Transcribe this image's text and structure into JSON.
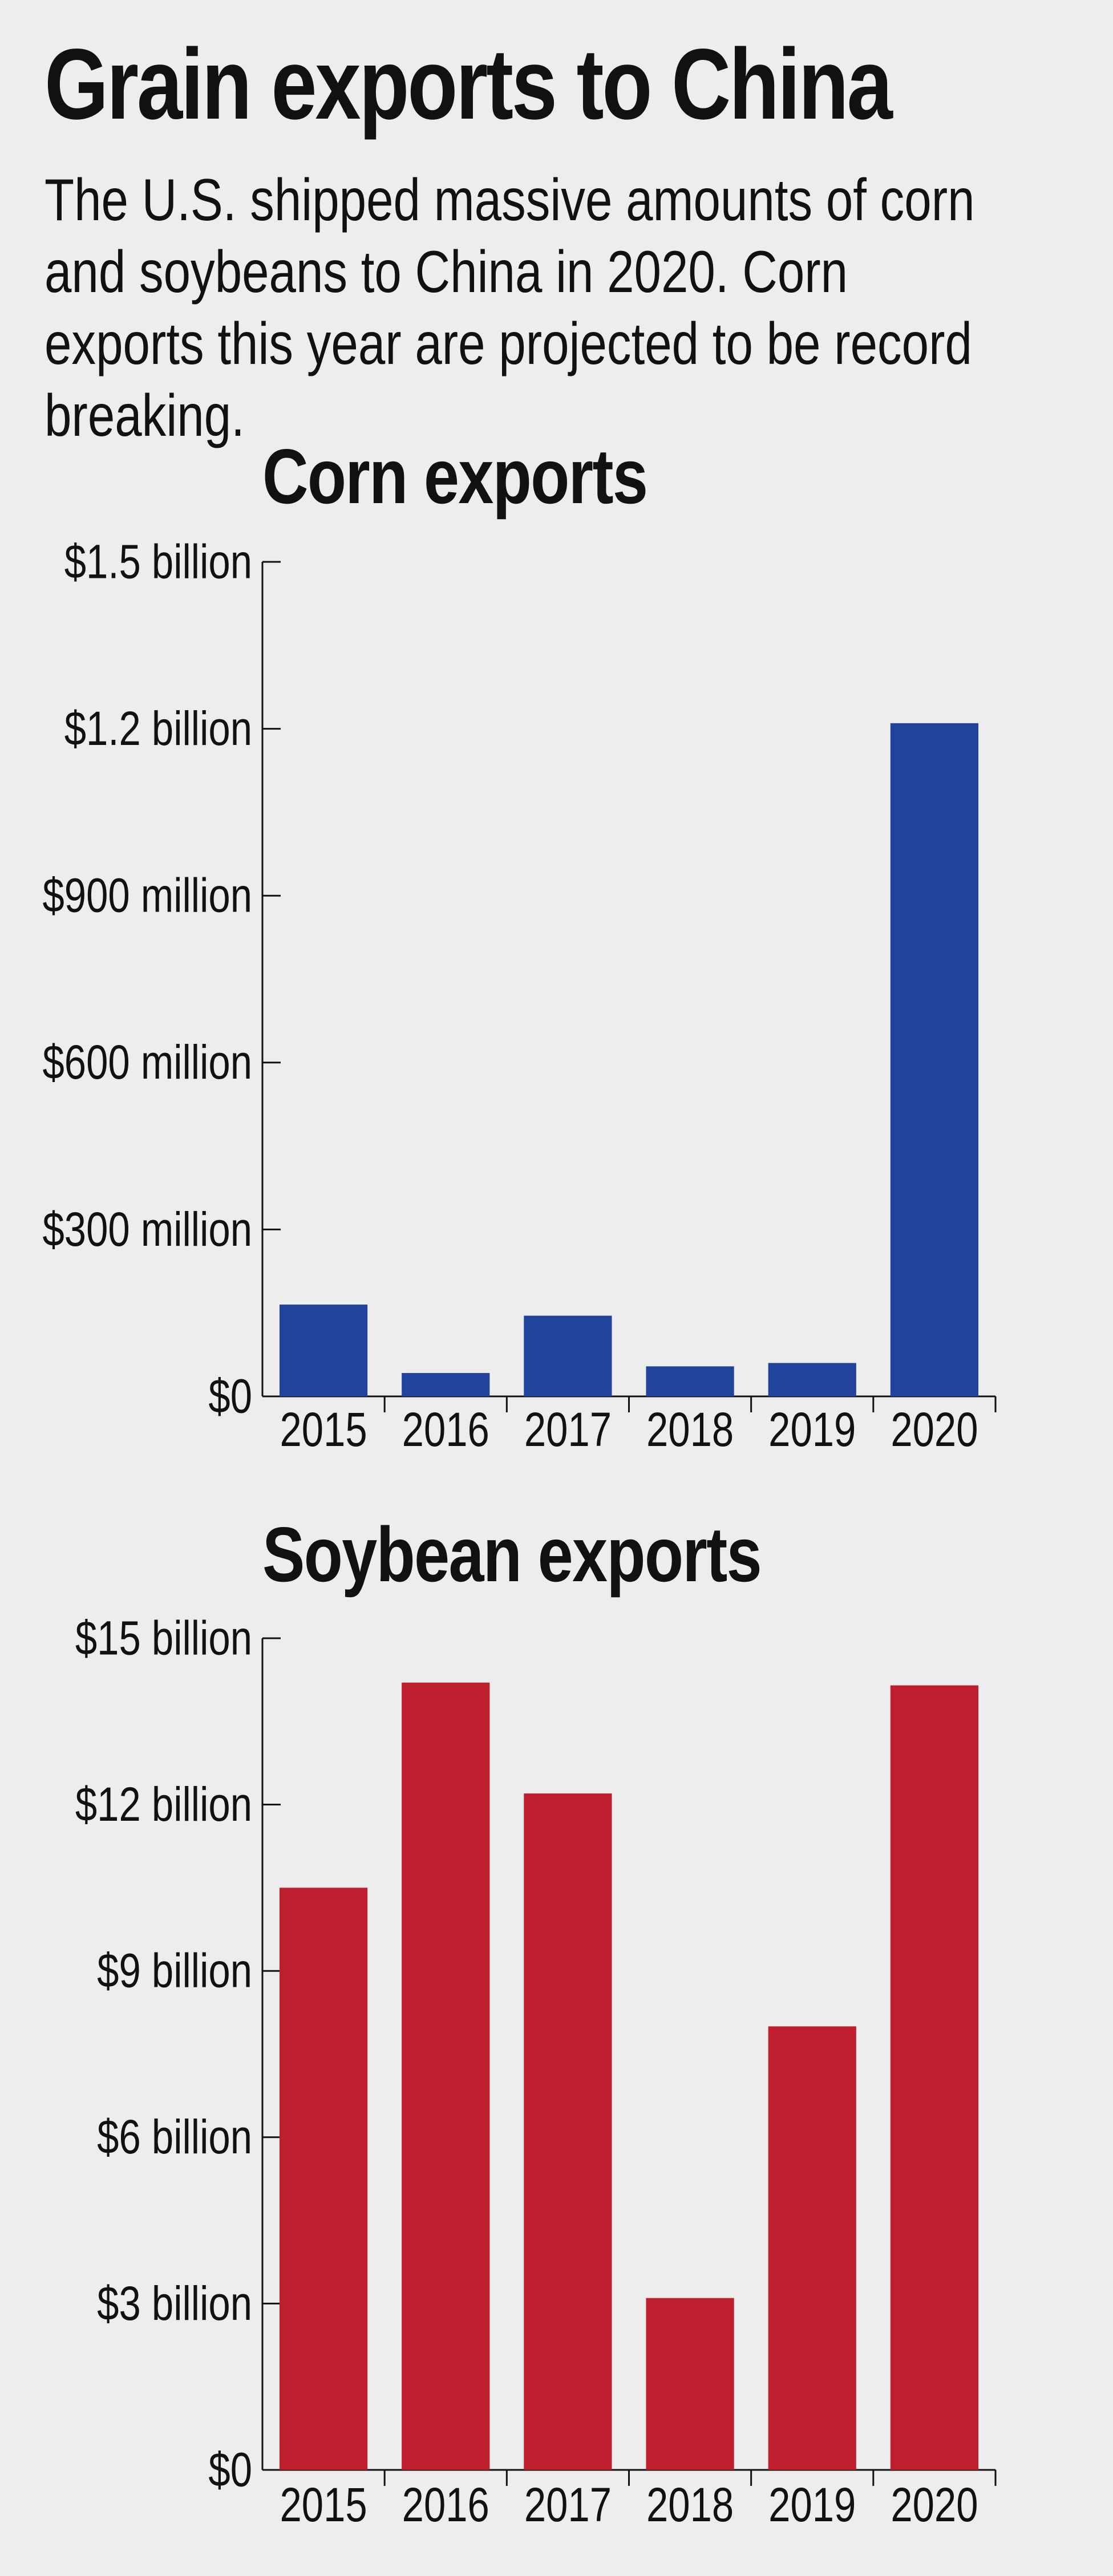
{
  "header": {
    "title": "Grain exports to China",
    "subtitle": "The U.S. shipped massive amounts of corn and soybeans to China in 2020. Corn exports this year are projected to be record breaking."
  },
  "colors": {
    "background": "#ecedec",
    "corn": "#22439b",
    "soybean": "#be1e2d",
    "axis": "#111111"
  },
  "chart_data": [
    {
      "type": "bar",
      "title": "Corn exports",
      "xlabel": "",
      "ylabel": "",
      "categories": [
        "2015",
        "2016",
        "2017",
        "2018",
        "2019",
        "2020"
      ],
      "values": [
        0.165,
        0.042,
        0.145,
        0.054,
        0.06,
        1.21
      ],
      "unit": "billion USD",
      "ylim": [
        0,
        1.5
      ],
      "yticks": [
        {
          "value": 0,
          "label": "$0"
        },
        {
          "value": 0.3,
          "label": "$300 million"
        },
        {
          "value": 0.6,
          "label": "$600 million"
        },
        {
          "value": 0.9,
          "label": "$900 million"
        },
        {
          "value": 1.2,
          "label": "$1.2 billion"
        },
        {
          "value": 1.5,
          "label": "$1.5 billion"
        }
      ],
      "color": "#22439b",
      "grid": false
    },
    {
      "type": "bar",
      "title": "Soybean exports",
      "xlabel": "",
      "ylabel": "",
      "categories": [
        "2015",
        "2016",
        "2017",
        "2018",
        "2019",
        "2020"
      ],
      "values": [
        10.5,
        14.2,
        12.2,
        3.1,
        8.0,
        14.15
      ],
      "unit": "billion USD",
      "ylim": [
        0,
        15
      ],
      "yticks": [
        {
          "value": 0,
          "label": "$0"
        },
        {
          "value": 3,
          "label": "$3 billion"
        },
        {
          "value": 6,
          "label": "$6 billion"
        },
        {
          "value": 9,
          "label": "$9 billion"
        },
        {
          "value": 12,
          "label": "$12 billion"
        },
        {
          "value": 15,
          "label": "$15 billion"
        }
      ],
      "color": "#be1e2d",
      "grid": false
    }
  ]
}
